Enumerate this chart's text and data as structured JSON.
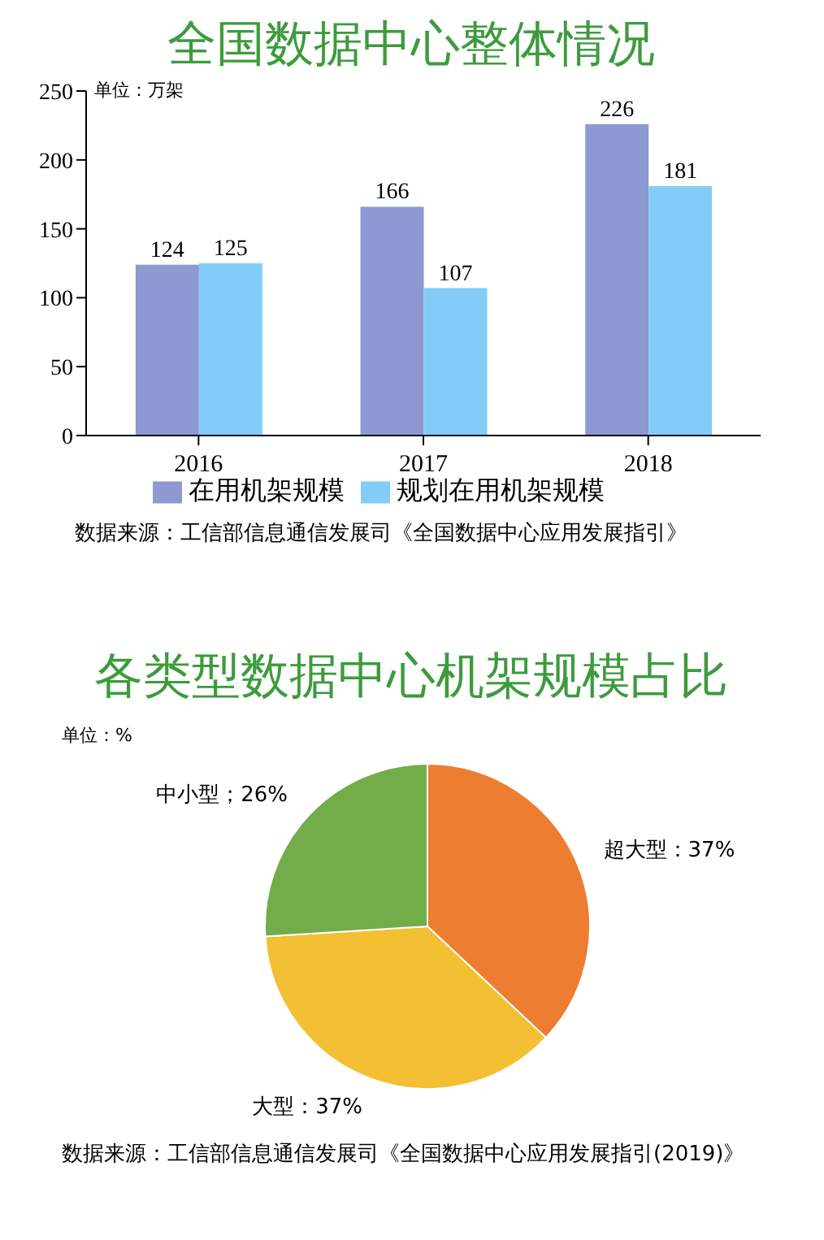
{
  "chart_data": [
    {
      "type": "bar",
      "title": "全国数据中心整体情况",
      "categories": [
        "2016",
        "2017",
        "2018"
      ],
      "series": [
        {
          "name": "在用机架规模",
          "color": "#8e98d2",
          "values": [
            124,
            166,
            226
          ]
        },
        {
          "name": "规划在用机架规模",
          "color": "#82cdf8",
          "values": [
            125,
            107,
            181
          ]
        }
      ],
      "ylim": [
        0,
        250
      ],
      "yticks": [
        0,
        50,
        100,
        150,
        200,
        250
      ],
      "data_labels": true,
      "legend": "bottom",
      "annotations": [
        "单位：万架",
        "数据来源：工信部信息通信发展司《全国数据中心应用发展指引》"
      ]
    },
    {
      "type": "pie",
      "title": "各类型数据中心机架规模占比",
      "categories": [
        "超大型",
        "大型",
        "中小型"
      ],
      "values": [
        37,
        37,
        26
      ],
      "colors": [
        "#ed7d31",
        "#f3c033",
        "#72ad4a"
      ],
      "value_labels": [
        "：37%",
        "：37%",
        "；26%"
      ],
      "annotations": [
        "单位：%",
        "数据来源：工信部信息通信发展司《全国数据中心应用发展指引(2019)》"
      ]
    }
  ]
}
